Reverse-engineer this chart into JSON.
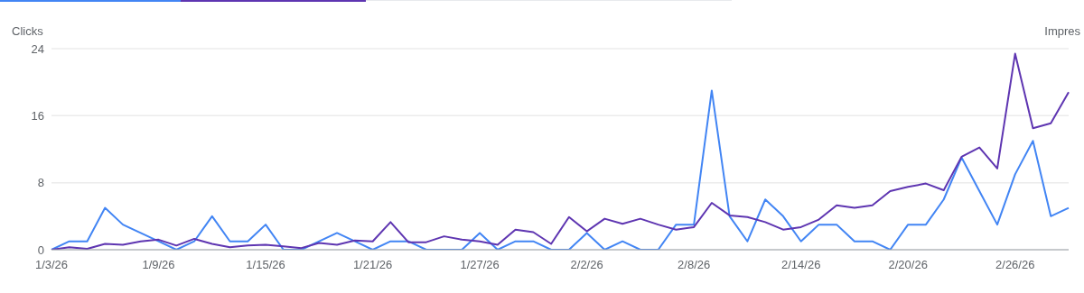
{
  "chart_data": {
    "type": "line",
    "ylabel": "Clicks",
    "y2label": "Impres",
    "categories": [
      "1/3/26",
      null,
      null,
      null,
      null,
      null,
      "1/9/26",
      null,
      null,
      null,
      null,
      null,
      "1/15/26",
      null,
      null,
      null,
      null,
      null,
      "1/21/26",
      null,
      null,
      null,
      null,
      null,
      "1/27/26",
      null,
      null,
      null,
      null,
      null,
      "2/2/26",
      null,
      null,
      null,
      null,
      null,
      "2/8/26",
      null,
      null,
      null,
      null,
      null,
      "2/14/26",
      null,
      null,
      null,
      null,
      null,
      "2/20/26",
      null,
      null,
      null,
      null,
      null,
      "2/26/26",
      null,
      null,
      null
    ],
    "series": [
      {
        "color": "#4285f4",
        "values": [
          0,
          1,
          1,
          5,
          3,
          2,
          1,
          0,
          1,
          4,
          1,
          1,
          3,
          0,
          0,
          1,
          2,
          1,
          0,
          1,
          1,
          0,
          0,
          0,
          2,
          0,
          1,
          1,
          0,
          0,
          2,
          0,
          1,
          0,
          0,
          3,
          3,
          19,
          4,
          1,
          6,
          4,
          1,
          3,
          3,
          1,
          1,
          0,
          3,
          3,
          6,
          11,
          7,
          3,
          9,
          13,
          4,
          5
        ]
      },
      {
        "color": "#5e35b1",
        "values": [
          0,
          0.3,
          0.1,
          0.7,
          0.6,
          1.0,
          1.2,
          0.5,
          1.3,
          0.7,
          0.3,
          0.5,
          0.6,
          0.4,
          0.2,
          0.8,
          0.6,
          1.1,
          1.0,
          3.3,
          0.9,
          0.9,
          1.6,
          1.2,
          1.0,
          0.6,
          2.4,
          2.1,
          0.7,
          3.9,
          2.2,
          3.7,
          3.1,
          3.7,
          3.0,
          2.4,
          2.7,
          5.6,
          4.1,
          3.9,
          3.3,
          2.4,
          2.7,
          3.6,
          5.3,
          5.0,
          5.3,
          7.0,
          7.5,
          7.9,
          7.1,
          11.1,
          12.2,
          9.7,
          23.4,
          14.5,
          15.1,
          18.8
        ]
      }
    ],
    "ylim": [
      0,
      24
    ],
    "yticks": [
      0,
      8,
      16,
      24
    ],
    "grid": "y",
    "marker": "none",
    "line_style": "solid"
  }
}
